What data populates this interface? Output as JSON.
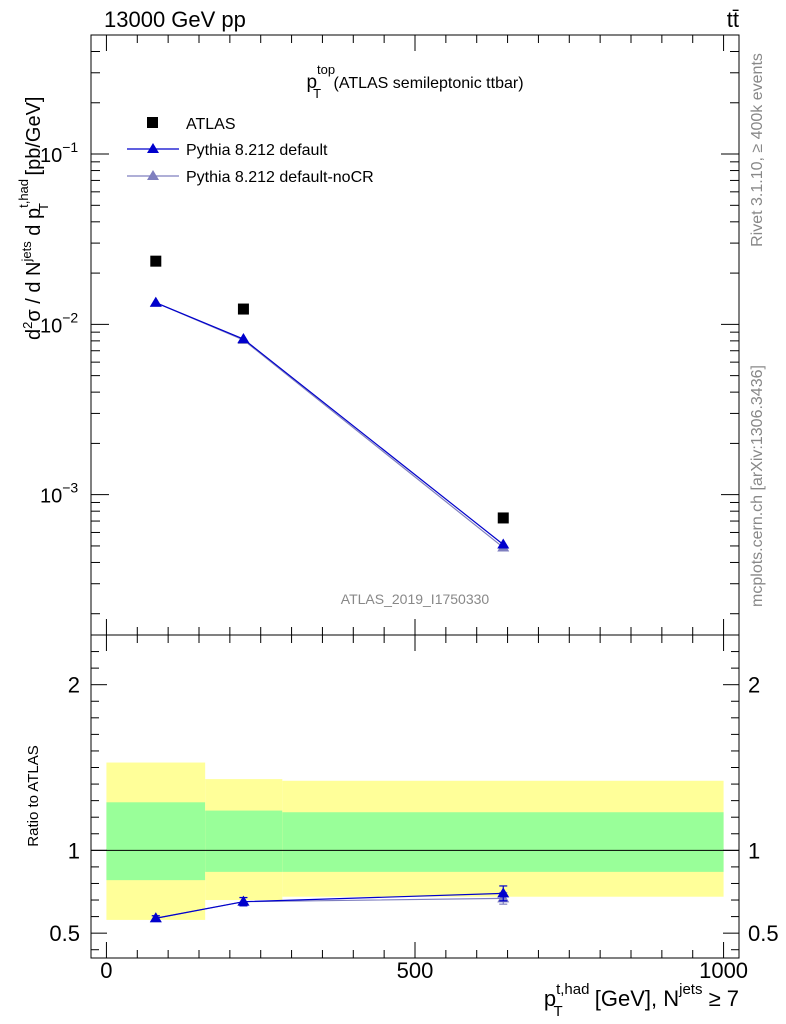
{
  "header": {
    "energy_label": "13000 GeV pp",
    "process_label": "tt̄"
  },
  "sidebar": {
    "rivet_label": "Rivet 3.1.10, ≥ 400k events",
    "mcplots_label": "mcplots.cern.ch [arXiv:1306.3436]"
  },
  "colors": {
    "data": "#000000",
    "pythia_default": "#0000cc",
    "pythia_nocr": "#7f7fbf",
    "band_outer": "#ffff99",
    "band_inner": "#99ff99"
  },
  "chart_data": [
    {
      "type": "scatter",
      "panel": "main",
      "title_main": "p",
      "title_sup": "top",
      "title_sub": "T",
      "title_rest": " (ATLAS semileptonic ttbar)",
      "ylabel_parts": [
        "d",
        "2",
        "σ /  d N",
        "jets",
        " d p",
        "t,had",
        "T",
        " [pb/GeV]"
      ],
      "yscale": "log",
      "ylim": [
        0.00015,
        0.5
      ],
      "ytick_labels": [
        {
          "value": 0.1,
          "base": "10",
          "exp": "−1"
        },
        {
          "value": 0.01,
          "base": "10",
          "exp": "−2"
        },
        {
          "value": 0.001,
          "base": "10",
          "exp": "−3"
        }
      ],
      "analysis_id": "ATLAS_2019_I1750330",
      "legend": [
        {
          "label": "ATLAS",
          "marker": "square"
        },
        {
          "label": "Pythia 8.212 default",
          "marker": "triangle"
        },
        {
          "label": "Pythia 8.212 default-noCR",
          "marker": "triangle"
        }
      ],
      "x": [
        80,
        222,
        643
      ],
      "series": [
        {
          "name": "ATLAS",
          "values": [
            0.0235,
            0.0123,
            0.00073
          ]
        },
        {
          "name": "Pythia 8.212 default",
          "values": [
            0.0134,
            0.0082,
            0.00051
          ]
        },
        {
          "name": "Pythia 8.212 default-noCR",
          "values": [
            0.0134,
            0.0081,
            0.00049
          ]
        }
      ]
    },
    {
      "type": "scatter",
      "panel": "ratio",
      "ylabel": "Ratio to ATLAS",
      "ylim": [
        0.35,
        2.3
      ],
      "ytick_labels": [
        "2",
        "1",
        "0.5"
      ],
      "ytick_values": [
        2,
        1,
        0.5
      ],
      "xlim": [
        -25,
        1025
      ],
      "xtick_labels": [
        "0",
        "500",
        "1000"
      ],
      "xtick_values": [
        0,
        500,
        1000
      ],
      "xlabel_parts": [
        "p",
        "t,had",
        "T",
        " [GeV], N",
        "jets",
        " ≥ 7"
      ],
      "bins": [
        [
          0,
          160
        ],
        [
          160,
          285
        ],
        [
          285,
          1000
        ]
      ],
      "band_outer": [
        [
          0.58,
          1.53
        ],
        [
          0.7,
          1.43
        ],
        [
          0.72,
          1.42
        ]
      ],
      "band_inner": [
        [
          0.82,
          1.29
        ],
        [
          0.87,
          1.24
        ],
        [
          0.87,
          1.23
        ]
      ],
      "x": [
        80,
        222,
        643
      ],
      "series": [
        {
          "name": "Pythia 8.212 default",
          "values": [
            0.59,
            0.69,
            0.74
          ],
          "errors": [
            0.015,
            0.025,
            0.045
          ]
        },
        {
          "name": "Pythia 8.212 default-noCR",
          "values": [
            0.59,
            0.69,
            0.71
          ],
          "errors": [
            0.015,
            0.025,
            0.035
          ]
        }
      ]
    }
  ]
}
